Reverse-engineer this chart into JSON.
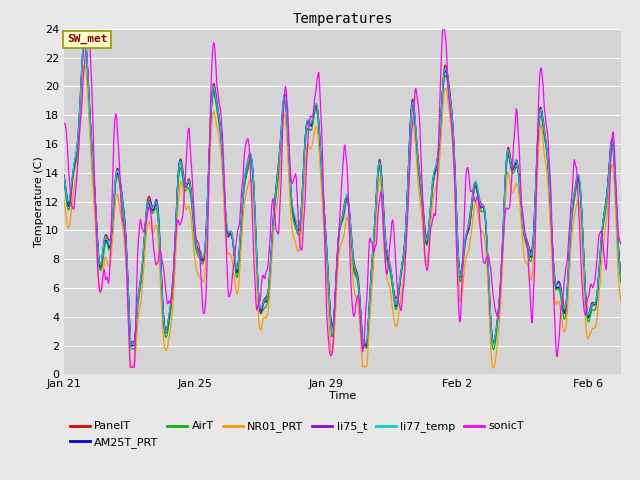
{
  "title": "Temperatures",
  "xlabel": "Time",
  "ylabel": "Temperature (C)",
  "ylim": [
    0,
    24
  ],
  "yticks": [
    0,
    2,
    4,
    6,
    8,
    10,
    12,
    14,
    16,
    18,
    20,
    22,
    24
  ],
  "xtick_labels": [
    "Jan 21",
    "Jan 25",
    "Jan 29",
    "Feb 2",
    "Feb 6"
  ],
  "xtick_positions": [
    0,
    4,
    8,
    12,
    16
  ],
  "annotation_text": "SW_met",
  "annotation_box_facecolor": "#ffffcc",
  "annotation_box_edgecolor": "#999900",
  "annotation_text_color": "#8b0000",
  "fig_facecolor": "#e8e8e8",
  "axes_facecolor": "#d4d4d4",
  "grid_color": "#ffffff",
  "series_order": [
    "PanelT",
    "AM25T_PRT",
    "AirT",
    "NR01_PRT",
    "li75_t",
    "li77_temp",
    "sonicT"
  ],
  "series": {
    "PanelT": {
      "color": "#dd0000",
      "lw": 0.9
    },
    "AM25T_PRT": {
      "color": "#0000cc",
      "lw": 0.9
    },
    "AirT": {
      "color": "#00bb00",
      "lw": 0.9
    },
    "NR01_PRT": {
      "color": "#ff9900",
      "lw": 0.9
    },
    "li75_t": {
      "color": "#9900cc",
      "lw": 0.9
    },
    "li77_temp": {
      "color": "#00cccc",
      "lw": 0.9
    },
    "sonicT": {
      "color": "#ff00ff",
      "lw": 0.9
    }
  },
  "legend_ncol_row1": 6,
  "legend_fontsize": 8
}
